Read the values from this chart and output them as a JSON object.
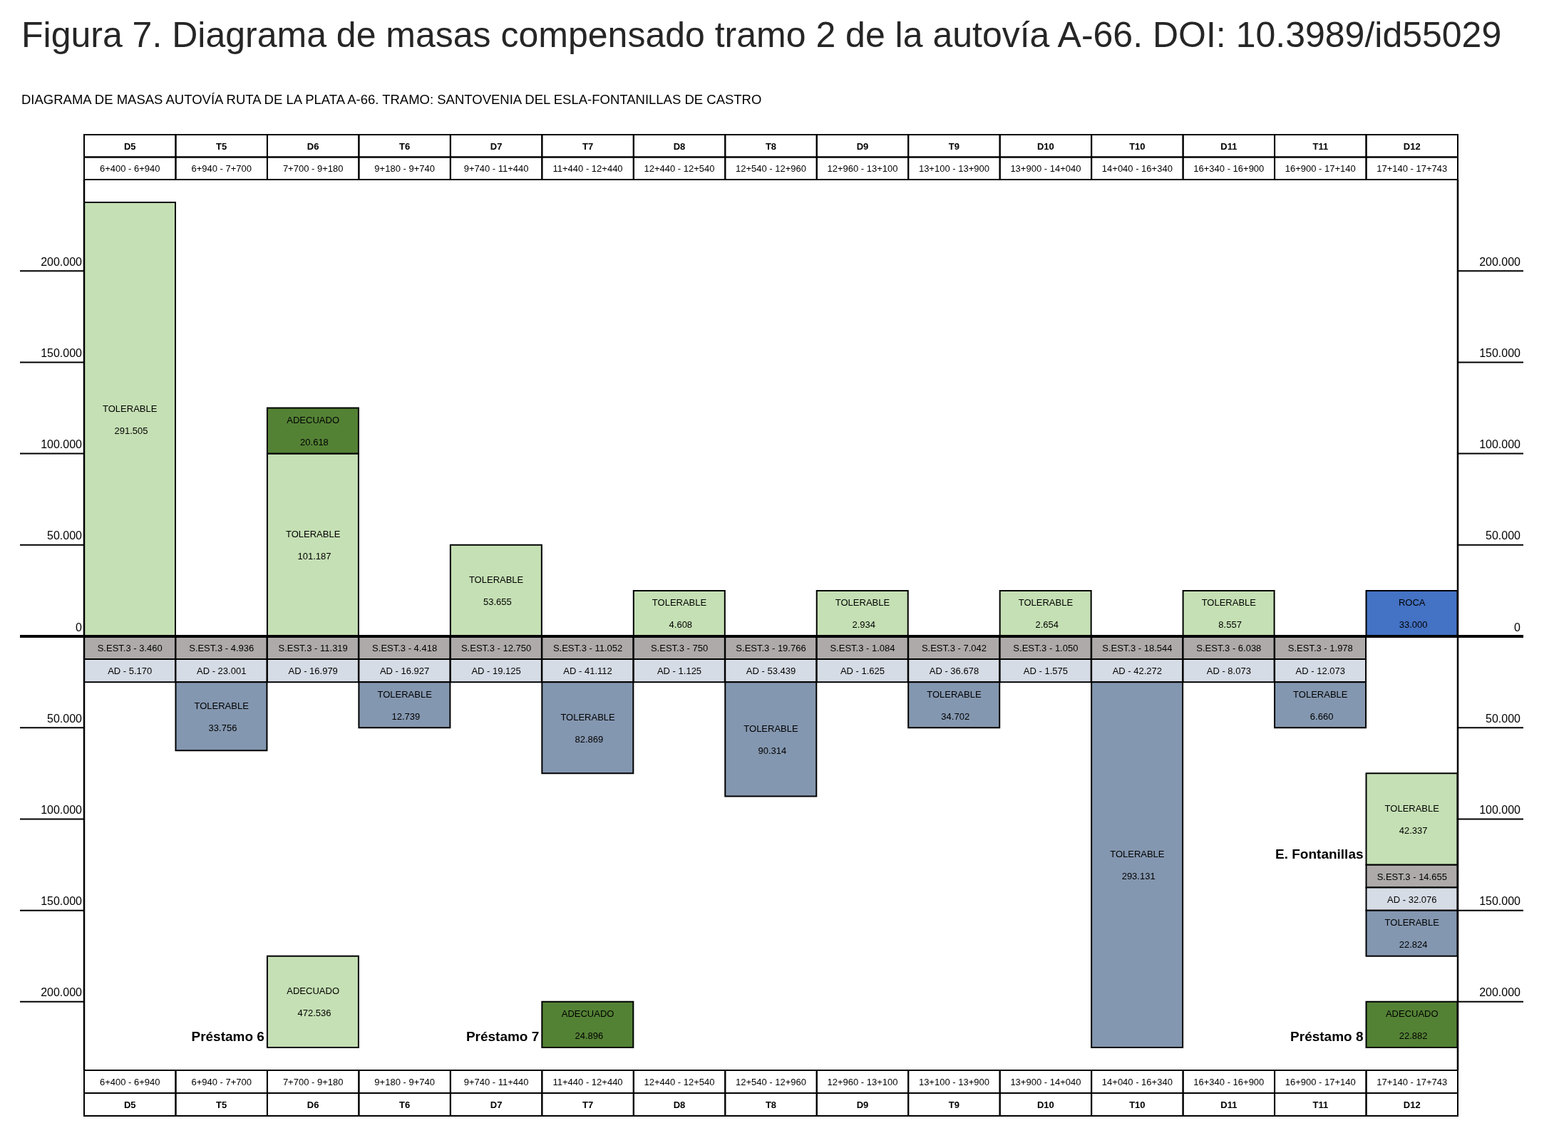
{
  "chart_data": {
    "type": "bar",
    "title": "Figura 7. Diagrama de masas compensado tramo 2 de la autovía A-66. DOI: 10.3989/id55029",
    "subtitle": "DIAGRAMA DE MASAS AUTOVÍA RUTA DE LA PLATA A-66. TRAMO: SANTOVENIA DEL ESLA-FONTANILLAS DE CASTRO",
    "categories": [
      "D5",
      "T5",
      "D6",
      "T6",
      "D7",
      "T7",
      "D8",
      "T8",
      "D9",
      "T9",
      "D10",
      "T10",
      "D11",
      "T11",
      "D12"
    ],
    "series": [
      {
        "values": [
          237500,
          null,
          100000,
          null,
          50000,
          null,
          25000,
          null,
          25000,
          null,
          25000,
          null,
          25000,
          null,
          25000
        ],
        "base": [
          0,
          null,
          0,
          null,
          0,
          null,
          0,
          null,
          0,
          null,
          0,
          null,
          0,
          null,
          0
        ],
        "colors": [
          "#c5e0b4",
          null,
          "#c5e0b4",
          null,
          "#c5e0b4",
          null,
          "#c5e0b4",
          null,
          "#c5e0b4",
          null,
          "#c5e0b4",
          null,
          "#c5e0b4",
          null,
          "#4472c4"
        ],
        "value_labels": [
          "TOLERABLE\n291.505",
          null,
          "TOLERABLE\n101.187",
          null,
          "TOLERABLE\n53.655",
          null,
          "TOLERABLE\n4.608",
          null,
          "TOLERABLE\n2.934",
          null,
          "TOLERABLE\n2.654",
          null,
          "TOLERABLE\n8.557",
          null,
          "ROCA\n33.000"
        ]
      },
      {
        "values": [
          null,
          null,
          25000,
          null,
          null,
          null,
          null,
          null,
          null,
          null,
          null,
          null,
          null,
          null,
          null
        ],
        "base": [
          null,
          null,
          100000,
          null,
          null,
          null,
          null,
          null,
          null,
          null,
          null,
          null,
          null,
          null,
          null
        ],
        "color": "#548235",
        "value_labels": [
          null,
          null,
          "ADECUADO\n20.618",
          null,
          null,
          null,
          null,
          null,
          null,
          null,
          null,
          null,
          null,
          null,
          null
        ]
      },
      {
        "values": [
          -12500,
          -12500,
          -12500,
          -12500,
          -12500,
          -12500,
          -12500,
          -12500,
          -12500,
          -12500,
          -12500,
          -12500,
          -12500,
          -12500,
          -12500
        ],
        "base": [
          0,
          0,
          0,
          0,
          0,
          0,
          0,
          0,
          0,
          0,
          0,
          0,
          0,
          0,
          -125000
        ],
        "color": "#aeaaaa",
        "value_labels": [
          "S.EST.3 - 3.460",
          "S.EST.3 - 4.936",
          "S.EST.3 - 11.319",
          "S.EST.3 - 4.418",
          "S.EST.3 - 12.750",
          "S.EST.3 - 11.052",
          "S.EST.3 - 750",
          "S.EST.3 - 19.766",
          "S.EST.3 - 1.084",
          "S.EST.3 - 7.042",
          "S.EST.3 - 1.050",
          "S.EST.3 - 18.544",
          "S.EST.3 - 6.038",
          "S.EST.3 - 1.978",
          "S.EST.3 - 14.655"
        ]
      },
      {
        "values": [
          -12500,
          -12500,
          -12500,
          -12500,
          -12500,
          -12500,
          -12500,
          -12500,
          -12500,
          -12500,
          -12500,
          -12500,
          -12500,
          -12500,
          -12500
        ],
        "base": [
          -12500,
          -12500,
          -12500,
          -12500,
          -12500,
          -12500,
          -12500,
          -12500,
          -12500,
          -12500,
          -12500,
          -12500,
          -12500,
          -12500,
          -137500
        ],
        "color": "#d6dce5"
      },
      {
        "values": [
          null,
          -37500,
          null,
          -25000,
          null,
          -50000,
          null,
          -62500,
          null,
          -25000,
          null,
          -200000,
          null,
          -25000,
          -25000
        ],
        "base": [
          null,
          -25000,
          null,
          -25000,
          null,
          -25000,
          null,
          -25000,
          null,
          -25000,
          null,
          -25000,
          null,
          -25000,
          -150000
        ],
        "color": "#8497b0",
        "value_labels": [
          null,
          "TOLERABLE\n33.756",
          null,
          "TOLERABLE\n12.739",
          null,
          "TOLERABLE\n82.869",
          null,
          "TOLERABLE\n90.314",
          null,
          "TOLERABLE\n34.702",
          null,
          "TOLERABLE\n293.131",
          null,
          "TOLERABLE\n6.660",
          "TOLERABLE\n22.824"
        ]
      },
      {
        "name": "E. Fontanillas",
        "values": [
          null,
          null,
          null,
          null,
          null,
          null,
          null,
          null,
          null,
          null,
          null,
          null,
          null,
          null,
          -50000
        ],
        "base": [
          null,
          null,
          null,
          null,
          null,
          null,
          null,
          null,
          null,
          null,
          null,
          null,
          null,
          null,
          -75000
        ],
        "color": "#c5e0b4",
        "value_labels": [
          null,
          null,
          null,
          null,
          null,
          null,
          null,
          null,
          null,
          null,
          null,
          null,
          null,
          null,
          "TOLERABLE\n42.337"
        ]
      },
      {
        "name": "Préstamo 6",
        "values": [
          null,
          null,
          -50000,
          null,
          null,
          null,
          null,
          null,
          null,
          null,
          null,
          null,
          null,
          null,
          null
        ],
        "base": [
          null,
          null,
          -175000,
          null,
          null,
          null,
          null,
          null,
          null,
          null,
          null,
          null,
          null,
          null,
          null
        ],
        "color": "#c5e0b4",
        "value_labels": [
          null,
          null,
          "ADECUADO\n472.536",
          null,
          null,
          null,
          null,
          null,
          null,
          null,
          null,
          null,
          null,
          null,
          null
        ]
      },
      {
        "name": "Préstamo 7",
        "values": [
          null,
          null,
          null,
          null,
          null,
          -25000,
          null,
          null,
          null,
          null,
          null,
          null,
          null,
          null,
          null
        ],
        "base": [
          null,
          null,
          null,
          null,
          null,
          -200000,
          null,
          null,
          null,
          null,
          null,
          null,
          null,
          null,
          null
        ],
        "color": "#548235",
        "value_labels": [
          null,
          null,
          null,
          null,
          null,
          "ADECUADO\n24.896",
          null,
          null,
          null,
          null,
          null,
          null,
          null,
          null,
          null
        ]
      },
      {
        "name": "Préstamo 8",
        "values": [
          null,
          null,
          null,
          null,
          null,
          null,
          null,
          null,
          null,
          null,
          null,
          null,
          null,
          null,
          -25000
        ],
        "base": [
          null,
          null,
          null,
          null,
          null,
          null,
          null,
          null,
          null,
          null,
          null,
          null,
          null,
          null,
          -200000
        ],
        "color": "#548235",
        "value_labels": [
          null,
          null,
          null,
          null,
          null,
          null,
          null,
          null,
          null,
          null,
          null,
          null,
          null,
          null,
          "ADECUADO\n22.882"
        ]
      }
    ],
    "ylim": [
      -237500,
      250000
    ],
    "yticks": [
      {
        "value": -200000,
        "label": "200.000"
      },
      {
        "value": -150000,
        "label": "150.000"
      },
      {
        "value": -100000,
        "label": "100.000"
      },
      {
        "value": -50000,
        "label": "50.000"
      },
      0,
      {
        "value": 50000,
        "label": "50.000"
      },
      {
        "value": 100000,
        "label": "100.000"
      },
      {
        "value": 150000,
        "label": "150.000"
      },
      {
        "value": 200000,
        "label": "200.000"
      }
    ],
    "y2lim": [
      -237500,
      250000
    ],
    "y2ticks": [
      {
        "value": -200000,
        "label": "200.000"
      },
      {
        "value": -150000,
        "label": "150.000"
      },
      {
        "value": -100000,
        "label": "100.000"
      },
      {
        "value": -50000,
        "label": "50.000"
      },
      0,
      {
        "value": 50000,
        "label": "50.000"
      },
      {
        "value": 100000,
        "label": "100.000"
      },
      {
        "value": 150000,
        "label": "150.000"
      },
      {
        "value": 200000,
        "label": "200.000"
      }
    ],
    "ref_lines": [
      {
        "axis": "y",
        "value": 0,
        "color": "#000000"
      }
    ],
    "annotations": [
      "6+400 - 6+940",
      "6+940 - 7+700",
      "7+700 - 9+180",
      "9+180 - 9+740",
      "9+740 - 11+440",
      "11+440 - 12+440",
      "12+440 - 12+540",
      "12+540 - 12+960",
      "12+960 - 13+100",
      "13+100 - 13+900",
      "13+900 - 14+040",
      "14+040 - 16+340",
      "16+340 - 16+900",
      "16+900 - 17+140",
      "17+140 - 17+743",
      {
        "text": "AD - 5.170",
        "x": "D5",
        "y": -25000
      },
      {
        "text": "AD - 23.001",
        "x": "T5",
        "y": -25000
      },
      {
        "text": "AD - 16.979",
        "x": "D6",
        "y": -25000
      },
      {
        "text": "AD - 16.927",
        "x": "T6",
        "y": -25000
      },
      {
        "text": "AD - 19.125",
        "x": "D7",
        "y": -25000
      },
      {
        "text": "AD - 41.112",
        "x": "T7",
        "y": -25000
      },
      {
        "text": "AD - 1.125",
        "x": "D8",
        "y": -25000
      },
      {
        "text": "AD - 53.439",
        "x": "T8",
        "y": -25000
      },
      {
        "text": "AD - 1.625",
        "x": "D9",
        "y": -25000
      },
      {
        "text": "AD - 36.678",
        "x": "T9",
        "y": -25000
      },
      {
        "text": "AD - 1.575",
        "x": "D10",
        "y": -25000
      },
      {
        "text": "AD - 42.272",
        "x": "T10",
        "y": -25000
      },
      {
        "text": "AD - 8.073",
        "x": "D11",
        "y": -25000
      },
      {
        "text": "AD - 12.073",
        "x": "T11",
        "y": -25000
      },
      {
        "text": "AD - 32.076",
        "x": "D12",
        "y": -150000
      }
    ]
  }
}
